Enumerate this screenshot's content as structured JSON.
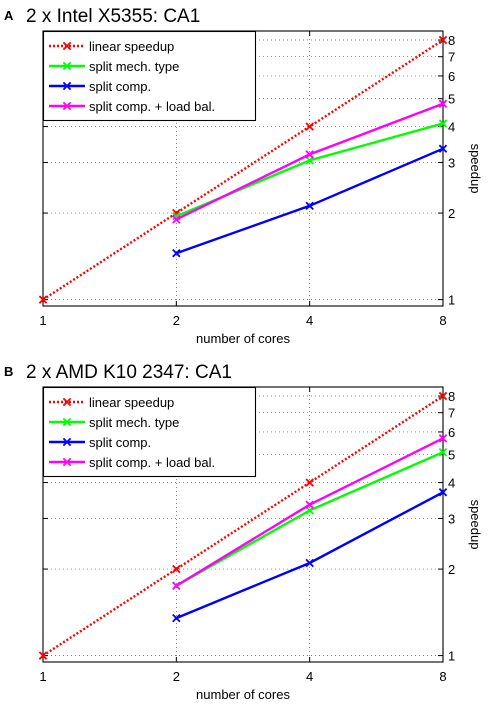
{
  "chart_data": [
    {
      "panel": "A",
      "title": "2 x Intel X5355: CA1",
      "type": "line",
      "xlabel": "number of cores",
      "ylabel": "speedup",
      "x_scale": "log2",
      "y_scale": "log",
      "xlim": [
        1,
        8
      ],
      "ylim": [
        0.95,
        8.6
      ],
      "x_ticks": [
        1,
        2,
        4,
        8
      ],
      "x_tick_labels": [
        "1",
        "2",
        "4",
        "8"
      ],
      "y_ticks": [
        1,
        2,
        3,
        4,
        5,
        6,
        7,
        8
      ],
      "y_tick_labels": [
        "1",
        "2",
        "3",
        "4",
        "5",
        "6",
        "7",
        "8"
      ],
      "grid": true,
      "legend_position": "top-left",
      "series": [
        {
          "name": "linear speedup",
          "color": "#ff0000",
          "style": "dotted",
          "x": [
            1,
            2,
            4,
            8
          ],
          "y": [
            1,
            2,
            4,
            8
          ]
        },
        {
          "name": "split mech. type",
          "color": "#00ff00",
          "style": "solid",
          "x": [
            2,
            4,
            8
          ],
          "y": [
            1.95,
            3.05,
            4.1
          ]
        },
        {
          "name": "split comp.",
          "color": "#0000ff",
          "style": "solid",
          "x": [
            2,
            4,
            8
          ],
          "y": [
            1.45,
            2.12,
            3.35
          ]
        },
        {
          "name": "split comp. + load bal.",
          "color": "#ff00ff",
          "style": "solid",
          "x": [
            2,
            4,
            8
          ],
          "y": [
            1.9,
            3.2,
            4.8
          ]
        }
      ]
    },
    {
      "panel": "B",
      "title": "2 x AMD K10 2347: CA1",
      "type": "line",
      "xlabel": "number of cores",
      "ylabel": "speedup",
      "x_scale": "log2",
      "y_scale": "log",
      "xlim": [
        1,
        8
      ],
      "ylim": [
        0.95,
        8.6
      ],
      "x_ticks": [
        1,
        2,
        4,
        8
      ],
      "x_tick_labels": [
        "1",
        "2",
        "4",
        "8"
      ],
      "y_ticks": [
        1,
        2,
        3,
        4,
        5,
        6,
        7,
        8
      ],
      "y_tick_labels": [
        "1",
        "2",
        "3",
        "4",
        "5",
        "6",
        "7",
        "8"
      ],
      "grid": true,
      "legend_position": "top-left",
      "series": [
        {
          "name": "linear speedup",
          "color": "#ff0000",
          "style": "dotted",
          "x": [
            1,
            2,
            4,
            8
          ],
          "y": [
            1,
            2,
            4,
            8
          ]
        },
        {
          "name": "split mech. type",
          "color": "#00ff00",
          "style": "solid",
          "x": [
            2,
            4,
            8
          ],
          "y": [
            1.75,
            3.2,
            5.1
          ]
        },
        {
          "name": "split comp.",
          "color": "#0000ff",
          "style": "solid",
          "x": [
            2,
            4,
            8
          ],
          "y": [
            1.35,
            2.1,
            3.7
          ]
        },
        {
          "name": "split comp. + load bal.",
          "color": "#ff00ff",
          "style": "solid",
          "x": [
            2,
            4,
            8
          ],
          "y": [
            1.75,
            3.35,
            5.7
          ]
        }
      ]
    }
  ]
}
